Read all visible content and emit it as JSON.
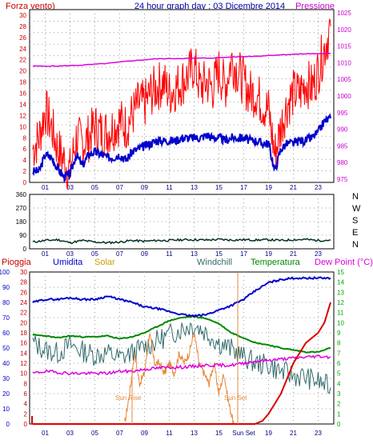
{
  "header": {
    "title": "24 hour graph day : 03 Dicembre 2014",
    "left_label": "Forza vento",
    "left_label_suffix": ")",
    "right_label": "Pressione"
  },
  "middle": {
    "compass_labels": [
      "N",
      "W",
      "S",
      "E",
      "N"
    ]
  },
  "bottom_legend": {
    "pioggia": "Pioggia",
    "umidita": "Umidita",
    "solar": "Solar",
    "windchill": "Windchill",
    "temperatura": "Temperatura",
    "dewpoint": "Dew Point (°C)"
  },
  "annotations": {
    "sun_rise": "Sun Rise",
    "sun_set": "Sun Set",
    "sun_set_axis": "Sun Set"
  },
  "colors": {
    "wind": "#ff0000",
    "wind_avg": "#0000cc",
    "pressure": "#dd00dd",
    "direction": "#003322",
    "humidity": "#0000cc",
    "solar": "#e8883a",
    "windchill": "#336b6b",
    "temperature": "#008800",
    "dewpoint": "#dd00dd",
    "rain": "#dd0000",
    "axis_left_top": "#cc0000",
    "axis_right_top": "#cc00cc",
    "axis_left_bottom": "#0000cc",
    "axis_right_bottom": "#00aa00"
  },
  "chart_data": [
    {
      "type": "line",
      "panel": "wind_pressure",
      "x_ticks": [
        "01",
        "03",
        "05",
        "07",
        "09",
        "11",
        "13",
        "15",
        "17",
        "19",
        "21",
        "23"
      ],
      "left_axis": {
        "ticks": [
          "0",
          "2",
          "4",
          "6",
          "8",
          "10",
          "12",
          "14",
          "16",
          "18",
          "20",
          "22",
          "24",
          "26",
          "28",
          "30"
        ],
        "range": [
          0,
          31
        ]
      },
      "right_axis": {
        "ticks": [
          "975",
          "980",
          "985",
          "990",
          "995",
          "1000",
          "1005",
          "1010",
          "1015",
          "1020",
          "1025"
        ],
        "range": [
          974,
          1026
        ]
      },
      "series": [
        {
          "role": "pressure",
          "x": [
            0,
            2,
            4,
            6,
            8,
            10,
            12,
            14,
            16,
            18,
            20,
            22,
            24
          ],
          "values": [
            1009,
            1009,
            1009.3,
            1009.8,
            1010.6,
            1011.2,
            1011.3,
            1011.4,
            1011.7,
            1012.0,
            1012.4,
            1012.7,
            1012.8
          ]
        },
        {
          "role": "wind_avg",
          "x": [
            0,
            0.5,
            1,
            1.5,
            2,
            2.5,
            3,
            3.5,
            4,
            4.5,
            5,
            5.5,
            6,
            6.5,
            7,
            7.5,
            8,
            8.5,
            9,
            9.5,
            10,
            10.5,
            11,
            11.5,
            12,
            12.5,
            13,
            13.5,
            14,
            14.5,
            15,
            15.5,
            16,
            16.5,
            17,
            17.5,
            18,
            18.5,
            19,
            19.5,
            20,
            20.5,
            21,
            21.5,
            22,
            22.5,
            23,
            23.5,
            24
          ],
          "values": [
            2,
            2,
            5,
            4.5,
            2.5,
            1,
            1.5,
            5,
            3,
            5,
            5.5,
            5,
            4.5,
            4.5,
            5,
            4,
            5.5,
            6,
            6.5,
            7,
            7.5,
            7.5,
            7.5,
            7.5,
            8,
            8,
            8,
            8,
            8.5,
            8,
            8,
            7.5,
            8,
            8,
            8,
            7.5,
            7.5,
            7,
            7,
            2,
            6,
            7,
            7,
            7.5,
            7.5,
            8,
            9,
            11,
            11.5
          ]
        },
        {
          "role": "wind_gust",
          "x": [
            0,
            0.5,
            1,
            1.5,
            2,
            2.5,
            3,
            3.5,
            4,
            4.5,
            5,
            5.5,
            6,
            6.5,
            7,
            7.5,
            8,
            8.5,
            9,
            9.5,
            10,
            10.5,
            11,
            11.5,
            12,
            12.5,
            13,
            13.5,
            14,
            14.5,
            15,
            15.5,
            16,
            16.5,
            17,
            17.5,
            18,
            18.5,
            19,
            19.5,
            20,
            20.5,
            21,
            21.5,
            22,
            22.5,
            23,
            23.5,
            24
          ],
          "values": [
            6,
            8,
            13,
            10,
            6,
            4,
            2,
            8,
            7,
            8,
            10,
            9,
            9,
            10,
            11,
            10,
            12,
            14,
            14,
            16,
            17,
            18,
            16,
            17,
            18,
            19,
            21,
            17,
            18,
            17,
            20,
            17,
            22,
            20,
            18,
            16,
            16,
            14,
            13,
            5,
            10,
            14,
            16,
            16,
            18,
            17,
            20,
            24,
            28
          ]
        }
      ]
    },
    {
      "type": "line",
      "panel": "wind_direction",
      "x_ticks": [
        "01",
        "03",
        "05",
        "07",
        "09",
        "11",
        "13",
        "15",
        "17",
        "19",
        "21",
        "23"
      ],
      "left_axis": {
        "ticks": [
          "0",
          "90",
          "180",
          "270",
          "360"
        ],
        "range": [
          0,
          360
        ]
      },
      "series": [
        {
          "role": "direction",
          "x": [
            0,
            1,
            2,
            3,
            4,
            5,
            6,
            7,
            8,
            9,
            10,
            11,
            12,
            13,
            14,
            15,
            16,
            17,
            18,
            19,
            20,
            21,
            22,
            23,
            24
          ],
          "values": [
            45,
            55,
            60,
            40,
            55,
            45,
            40,
            45,
            55,
            50,
            55,
            55,
            60,
            60,
            58,
            62,
            58,
            60,
            58,
            60,
            55,
            60,
            62,
            55,
            58
          ]
        }
      ]
    },
    {
      "type": "line",
      "panel": "weather",
      "x_ticks": [
        "01",
        "03",
        "05",
        "07",
        "09",
        "11",
        "13",
        "15",
        "Sun Set",
        "19",
        "21",
        "23"
      ],
      "left_axis_pioggia": {
        "ticks": [
          "0",
          "2",
          "4",
          "6",
          "8",
          "10",
          "12",
          "14",
          "16",
          "18",
          "20",
          "22",
          "24",
          "26",
          "28",
          "30"
        ],
        "range": [
          0,
          30
        ]
      },
      "left_axis_umidita": {
        "ticks": [
          "0",
          "10",
          "20",
          "30",
          "40",
          "50",
          "60",
          "70",
          "80",
          "90",
          "100"
        ],
        "range": [
          0,
          100
        ]
      },
      "right_axis": {
        "ticks": [
          "0",
          "1",
          "2",
          "3",
          "4",
          "5",
          "6",
          "7",
          "8",
          "9",
          "10",
          "11",
          "12",
          "13",
          "14",
          "15"
        ],
        "range": [
          0,
          15
        ]
      },
      "series": [
        {
          "role": "humidity",
          "x": [
            0,
            1,
            2,
            3,
            4,
            5,
            6,
            7,
            8,
            9,
            10,
            11,
            12,
            13,
            14,
            15,
            16,
            17,
            18,
            19,
            20,
            21,
            22,
            23,
            24
          ],
          "values": [
            80,
            82,
            82,
            83,
            82,
            82,
            84,
            82,
            80,
            77,
            76,
            74,
            72,
            71,
            72,
            75,
            78,
            82,
            88,
            93,
            95,
            96,
            96,
            96,
            96
          ]
        },
        {
          "role": "temperature",
          "x": [
            0,
            1,
            2,
            3,
            4,
            5,
            6,
            7,
            8,
            9,
            10,
            11,
            12,
            13,
            14,
            15,
            16,
            17,
            18,
            19,
            20,
            21,
            22,
            23,
            24
          ],
          "values": [
            8.8,
            8.7,
            8.5,
            8.7,
            8.6,
            8.6,
            8.7,
            8.4,
            8.6,
            9.0,
            9.6,
            10.2,
            10.5,
            10.6,
            10.4,
            9.9,
            9.0,
            8.5,
            8.0,
            7.8,
            7.5,
            7.3,
            7.1,
            7.1,
            7.5
          ]
        },
        {
          "role": "windchill",
          "x": [
            0,
            1,
            2,
            3,
            4,
            5,
            6,
            7,
            8,
            9,
            10,
            11,
            12,
            13,
            14,
            15,
            16,
            17,
            18,
            19,
            20,
            21,
            22,
            23,
            24
          ],
          "values": [
            8.0,
            7.3,
            7.0,
            7.8,
            7.2,
            6.8,
            7.0,
            6.5,
            7.0,
            7.6,
            8.2,
            8.8,
            9.4,
            9.8,
            9.0,
            8.0,
            7.4,
            6.6,
            6.0,
            5.8,
            5.2,
            4.8,
            4.6,
            4.2,
            3.6
          ]
        },
        {
          "role": "dewpoint",
          "x": [
            0,
            1,
            2,
            3,
            4,
            5,
            6,
            7,
            8,
            9,
            10,
            11,
            12,
            13,
            14,
            15,
            16,
            17,
            18,
            19,
            20,
            21,
            22,
            23,
            24
          ],
          "values": [
            5.0,
            5.2,
            5.1,
            5.0,
            5.0,
            5.0,
            5.0,
            5.2,
            5.2,
            5.4,
            5.5,
            5.6,
            5.6,
            5.7,
            5.8,
            5.8,
            5.8,
            6.0,
            6.2,
            6.3,
            6.4,
            6.5,
            6.6,
            6.7,
            6.6
          ]
        },
        {
          "role": "solar",
          "x": [
            7.4,
            7.8,
            8.2,
            8.6,
            9.0,
            9.4,
            9.8,
            10.2,
            10.6,
            11.0,
            11.4,
            11.8,
            12.2,
            12.6,
            13.0,
            13.4,
            13.8,
            14.2,
            14.6,
            15.0,
            15.4,
            15.8,
            16.2
          ],
          "values": [
            0,
            3,
            7,
            4,
            5,
            9,
            6,
            6,
            5,
            6,
            5,
            7,
            6,
            7,
            9,
            6,
            5,
            4,
            6,
            3,
            5,
            2,
            0
          ]
        },
        {
          "role": "rain",
          "x": [
            0,
            17.9,
            18.5,
            19,
            19.5,
            20,
            20.5,
            21,
            21.5,
            22,
            22.5,
            23,
            23.5,
            24
          ],
          "values": [
            0,
            0,
            0.3,
            1,
            2,
            3,
            4.5,
            6,
            7,
            8,
            8.5,
            9,
            10,
            12
          ]
        }
      ]
    }
  ]
}
